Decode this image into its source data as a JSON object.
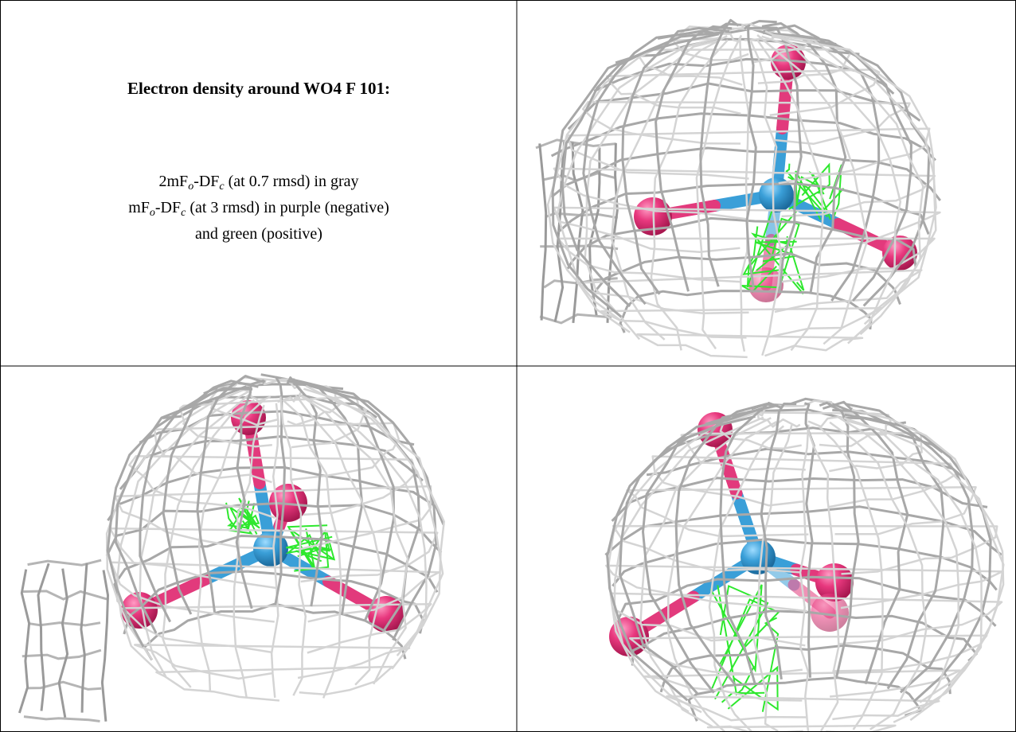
{
  "title": "Electron density around WO4 F 101:",
  "legend": [
    [
      "2mF",
      "o",
      "-DF",
      "c",
      " (at 0.7 rmsd) in gray"
    ],
    [
      "mF",
      "o",
      "-DF",
      "c",
      " (at 3 rmsd) in purple (negative)"
    ],
    [
      "and green (positive)"
    ]
  ]
}
